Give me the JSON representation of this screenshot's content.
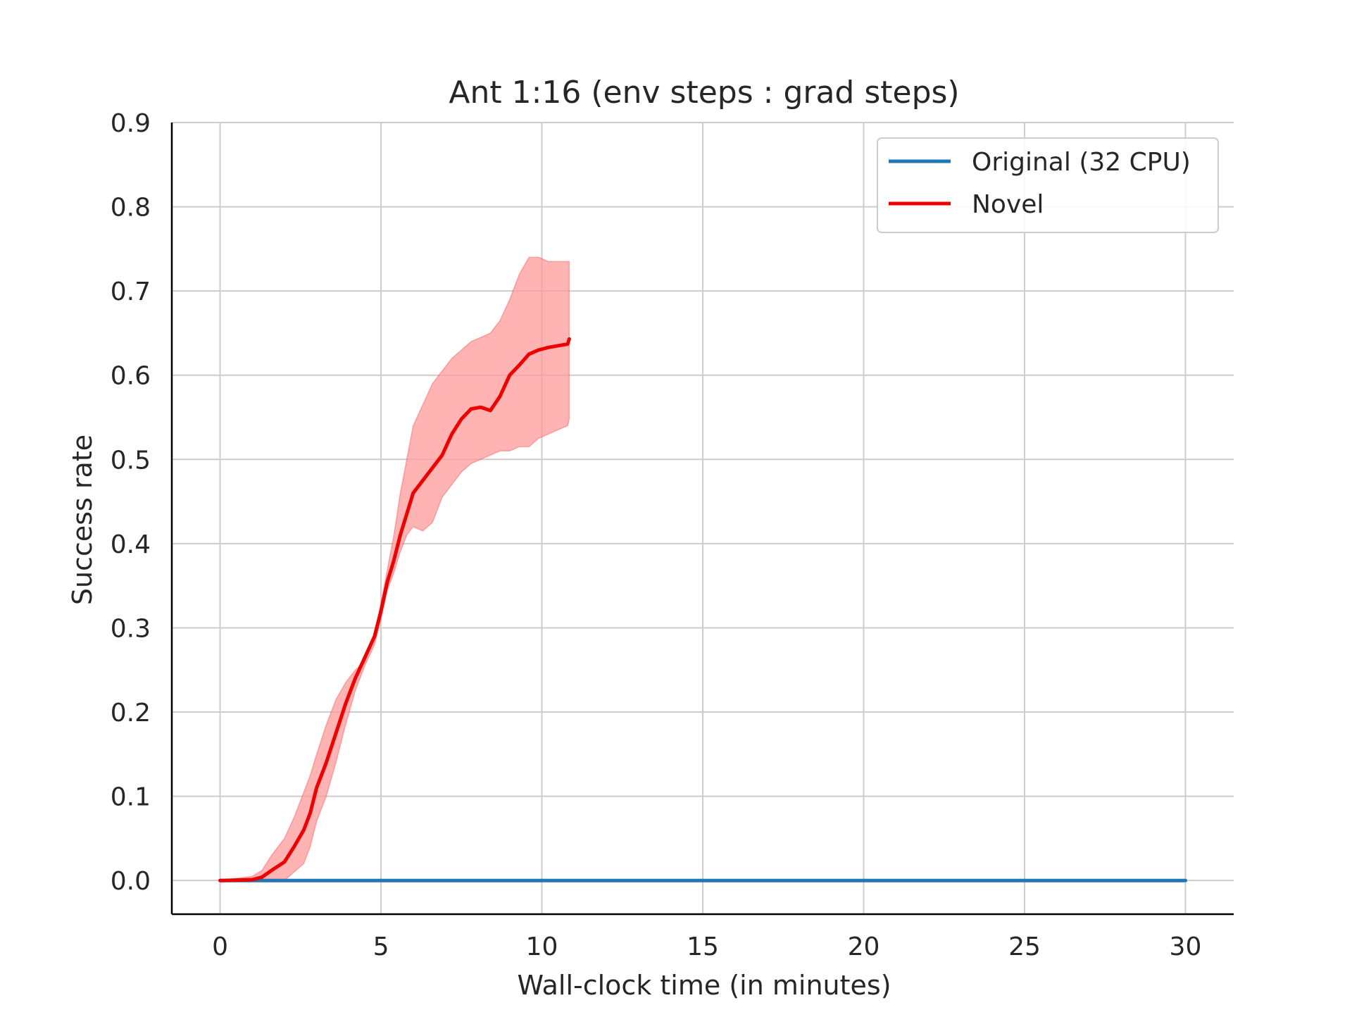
{
  "chart_data": {
    "type": "line",
    "title": "Ant 1:16 (env steps : grad steps)",
    "xlabel": "Wall-clock time (in minutes)",
    "ylabel": "Success rate",
    "xlim": [
      -1.5,
      31.5
    ],
    "ylim": [
      -0.04,
      0.9
    ],
    "xticks": [
      0,
      5,
      10,
      15,
      20,
      25,
      30
    ],
    "yticks": [
      0.0,
      0.1,
      0.2,
      0.3,
      0.4,
      0.5,
      0.6,
      0.7,
      0.8,
      0.9
    ],
    "xtick_labels": [
      "0",
      "5",
      "10",
      "15",
      "20",
      "25",
      "30"
    ],
    "ytick_labels": [
      "0.0",
      "0.1",
      "0.2",
      "0.3",
      "0.4",
      "0.5",
      "0.6",
      "0.7",
      "0.8",
      "0.9"
    ],
    "grid": true,
    "legend_position": "top-right",
    "series": [
      {
        "name": "Original (32 CPU)",
        "color": "#1f77b4",
        "x": [
          0,
          30
        ],
        "y": [
          0.0,
          0.0
        ]
      },
      {
        "name": "Novel",
        "color": "#ee0000",
        "band_color": "#ff9999",
        "x": [
          0,
          1.0,
          1.3,
          1.6,
          2.0,
          2.3,
          2.6,
          2.8,
          3.0,
          3.3,
          3.6,
          3.9,
          4.2,
          4.5,
          4.8,
          5.0,
          5.2,
          5.4,
          5.6,
          5.8,
          6.0,
          6.3,
          6.6,
          6.9,
          7.2,
          7.5,
          7.8,
          8.1,
          8.4,
          8.7,
          9.0,
          9.3,
          9.6,
          9.9,
          10.2,
          10.5,
          10.8,
          10.85
        ],
        "y": [
          0.0,
          0.001,
          0.004,
          0.012,
          0.022,
          0.04,
          0.06,
          0.08,
          0.11,
          0.14,
          0.175,
          0.21,
          0.24,
          0.265,
          0.29,
          0.32,
          0.355,
          0.38,
          0.41,
          0.435,
          0.46,
          0.475,
          0.49,
          0.505,
          0.53,
          0.548,
          0.56,
          0.562,
          0.558,
          0.575,
          0.6,
          0.612,
          0.625,
          0.63,
          0.633,
          0.635,
          0.637,
          0.643
        ],
        "y_lower": [
          0.0,
          0.0,
          0.0,
          0.0,
          0.0,
          0.01,
          0.02,
          0.04,
          0.07,
          0.1,
          0.14,
          0.185,
          0.225,
          0.255,
          0.28,
          0.31,
          0.345,
          0.365,
          0.39,
          0.41,
          0.42,
          0.415,
          0.425,
          0.455,
          0.47,
          0.485,
          0.495,
          0.5,
          0.505,
          0.51,
          0.51,
          0.515,
          0.515,
          0.525,
          0.53,
          0.535,
          0.54,
          0.548
        ],
        "y_upper": [
          0.0,
          0.005,
          0.012,
          0.03,
          0.05,
          0.075,
          0.105,
          0.125,
          0.15,
          0.185,
          0.215,
          0.235,
          0.25,
          0.26,
          0.29,
          0.33,
          0.37,
          0.41,
          0.46,
          0.5,
          0.54,
          0.565,
          0.59,
          0.605,
          0.62,
          0.63,
          0.64,
          0.645,
          0.65,
          0.665,
          0.69,
          0.72,
          0.74,
          0.74,
          0.735,
          0.735,
          0.735,
          0.735
        ]
      }
    ]
  }
}
